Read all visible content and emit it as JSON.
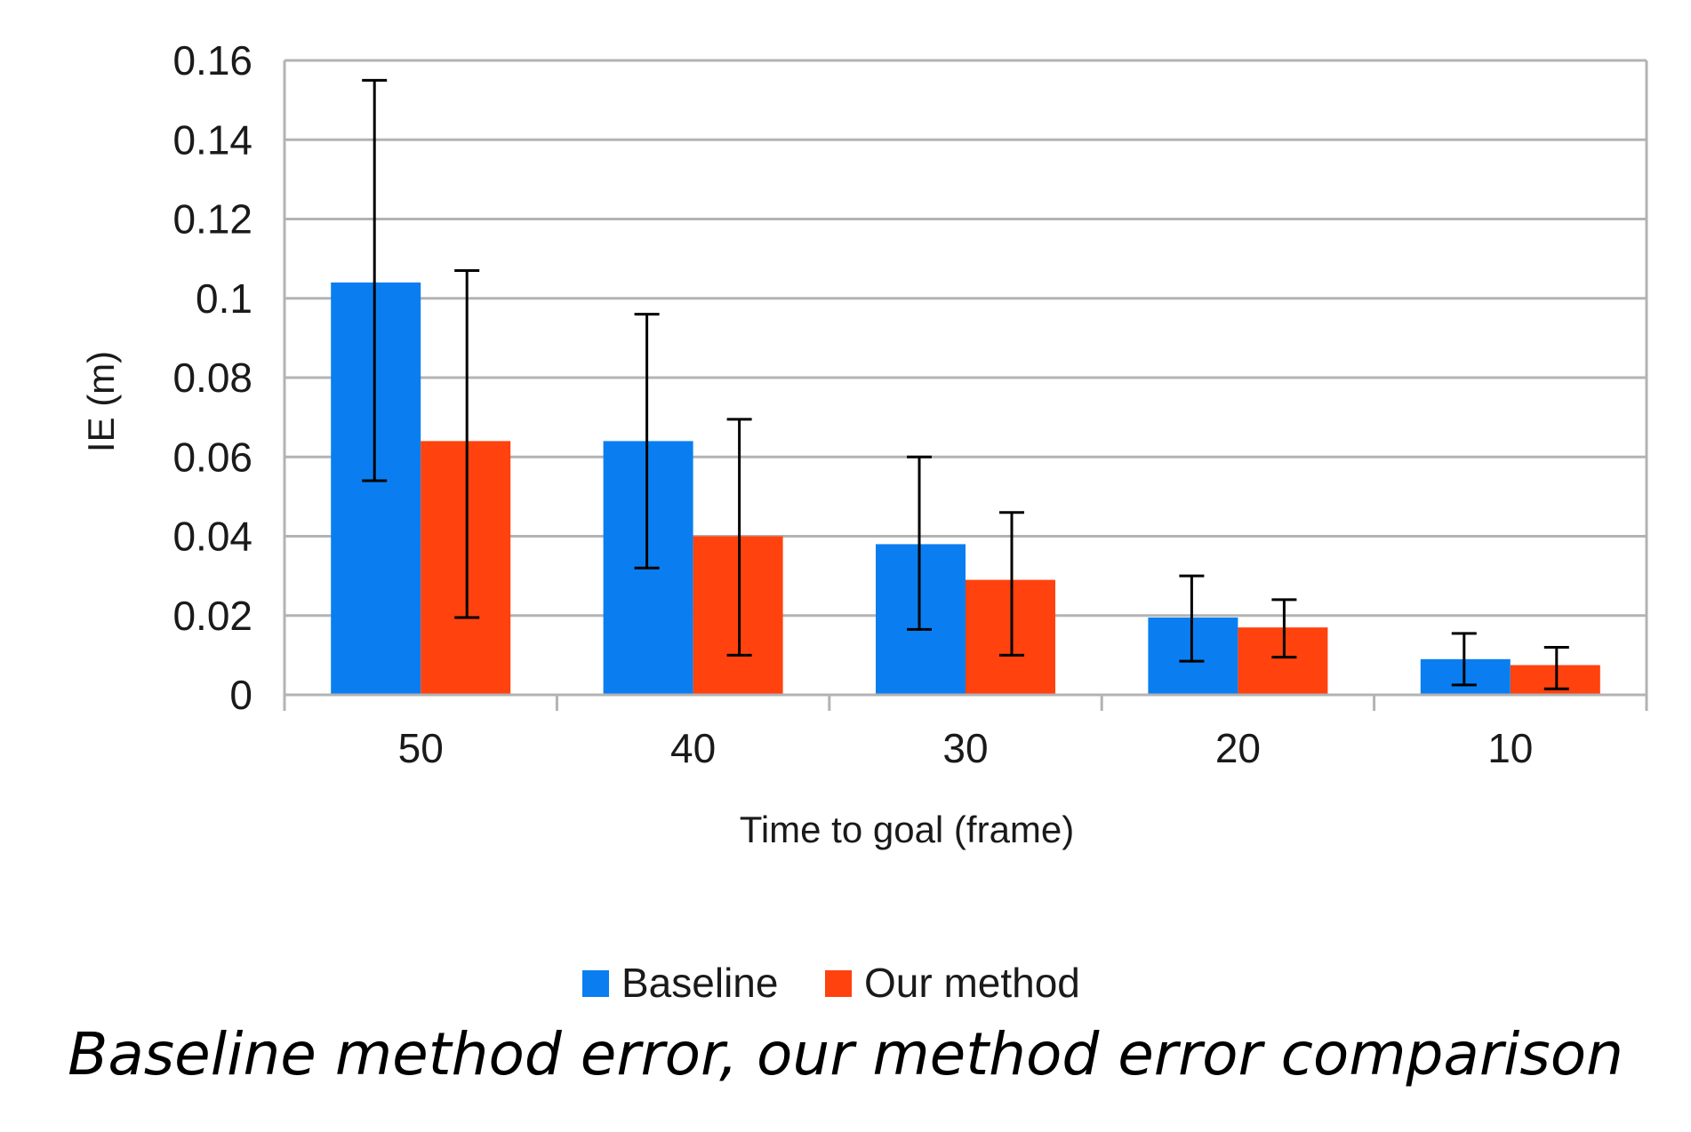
{
  "chart_data": {
    "type": "bar",
    "categories": [
      "50",
      "40",
      "30",
      "20",
      "10"
    ],
    "series": [
      {
        "name": "Baseline",
        "color": "#0a7ef0",
        "values": [
          0.104,
          0.064,
          0.038,
          0.0195,
          0.009
        ],
        "err_low": [
          0.054,
          0.032,
          0.0165,
          0.0085,
          0.0025
        ],
        "err_high": [
          0.155,
          0.096,
          0.06,
          0.03,
          0.0155
        ]
      },
      {
        "name": "Our method",
        "color": "#ff420e",
        "values": [
          0.064,
          0.04,
          0.029,
          0.017,
          0.0075
        ],
        "err_low": [
          0.0195,
          0.01,
          0.01,
          0.0095,
          0.0015
        ],
        "err_high": [
          0.107,
          0.0695,
          0.046,
          0.024,
          0.012
        ]
      }
    ],
    "xlabel": "Time to goal (frame)",
    "ylabel": "IE (m)",
    "ylim": [
      0,
      0.16
    ],
    "yticks": [
      "0",
      "0.02",
      "0.04",
      "0.06",
      "0.08",
      "0.1",
      "0.12",
      "0.14",
      "0.16"
    ],
    "grid": true,
    "legend_position": "bottom-center"
  },
  "caption": "Baseline method error, our method error comparison"
}
